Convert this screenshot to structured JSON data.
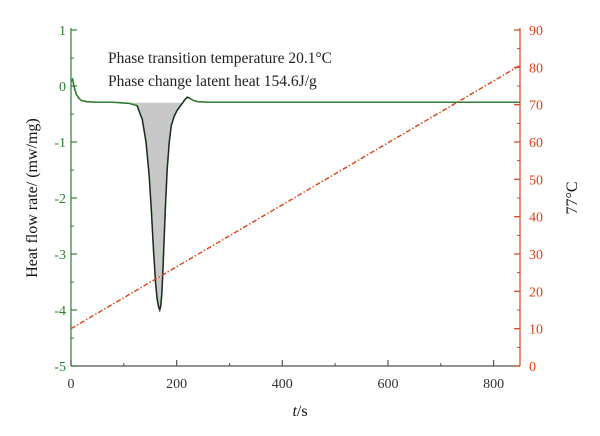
{
  "chart_data": {
    "type": "line",
    "annotations": [
      "Phase transition temperature 20.1°C",
      "Phase change latent heat 154.6J/g"
    ],
    "xlabel_italic": "t",
    "xlabel_suffix": "/s",
    "ylabel_left": "Heat flow rate/ (mw/mg)",
    "ylabel_right": "77°C",
    "x_range": [
      0,
      850
    ],
    "y_left_range": [
      -5,
      1
    ],
    "y_right_range": [
      0,
      90
    ],
    "x_ticks": [
      0,
      200,
      400,
      600,
      800
    ],
    "y_left_ticks": [
      1,
      0,
      -1,
      -2,
      -3,
      -4,
      -5
    ],
    "y_right_ticks": [
      90,
      80,
      70,
      60,
      50,
      40,
      30,
      20,
      10,
      0
    ],
    "grid": false,
    "colors": {
      "heat_flow": "#2e7d32",
      "temperature": "#d84315",
      "left_axis": "#2e7d32",
      "right_axis": "#d84315",
      "peak_fill": "#c8c8c8",
      "peak_outline": "#222222"
    },
    "series": [
      {
        "axis": "left",
        "style": "solid",
        "x": [
          0,
          3,
          6,
          10,
          15,
          20,
          30,
          50,
          80,
          95,
          110,
          125,
          135,
          142,
          148,
          152,
          156,
          160,
          163,
          166,
          168,
          170,
          172,
          174,
          176,
          179,
          182,
          186,
          190,
          195,
          200,
          205,
          210,
          215,
          220,
          225,
          232,
          240,
          260,
          300,
          400,
          500,
          600,
          700,
          800,
          850
        ],
        "y": [
          0.08,
          0.12,
          -0.02,
          -0.15,
          -0.22,
          -0.26,
          -0.28,
          -0.29,
          -0.29,
          -0.3,
          -0.31,
          -0.35,
          -0.6,
          -1.0,
          -1.6,
          -2.2,
          -2.9,
          -3.5,
          -3.8,
          -3.95,
          -4.0,
          -3.92,
          -3.7,
          -3.3,
          -2.8,
          -2.1,
          -1.5,
          -1.0,
          -0.7,
          -0.55,
          -0.45,
          -0.38,
          -0.32,
          -0.25,
          -0.2,
          -0.22,
          -0.26,
          -0.28,
          -0.29,
          -0.29,
          -0.29,
          -0.29,
          -0.29,
          -0.29,
          -0.29,
          -0.29
        ]
      },
      {
        "axis": "right",
        "style": "dashdot",
        "x": [
          0,
          850
        ],
        "y": [
          10.0,
          80.5
        ]
      }
    ]
  }
}
